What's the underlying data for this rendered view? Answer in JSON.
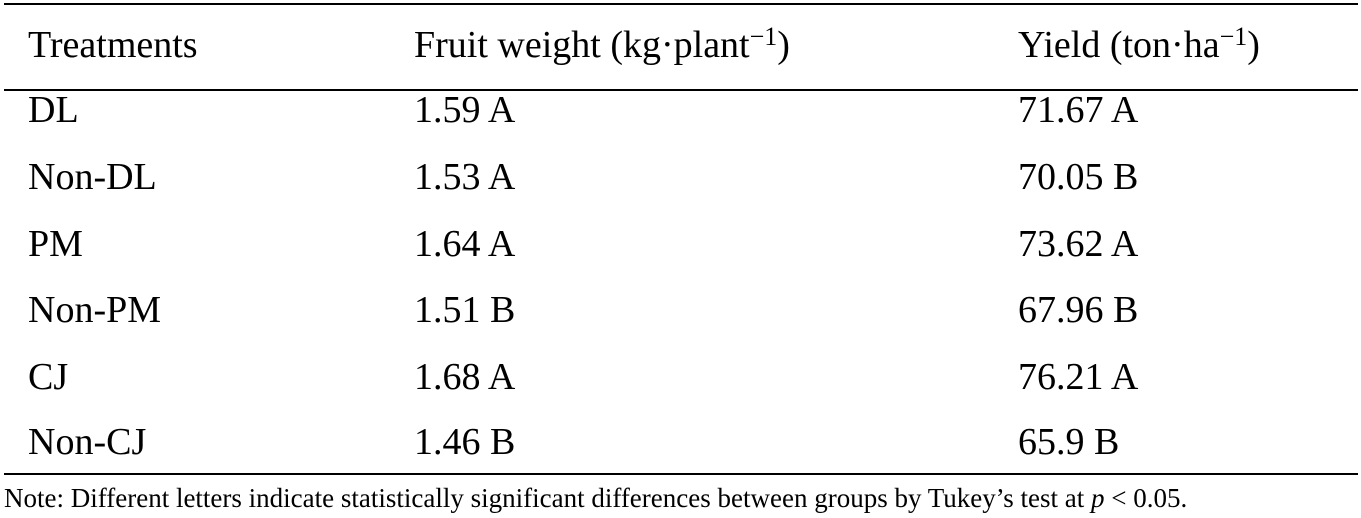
{
  "table": {
    "headers": {
      "treatments": "Treatments",
      "fruit_weight": {
        "prefix": "Fruit weight (kg·plant",
        "exponent": "−1",
        "suffix": ")"
      },
      "yield": {
        "prefix": "Yield (ton·ha",
        "exponent": "−1",
        "suffix": ")"
      }
    },
    "rows": [
      {
        "treatment": "DL",
        "fruit_weight": "1.59 A",
        "yield": "71.67 A"
      },
      {
        "treatment": "Non-DL",
        "fruit_weight": "1.53 A",
        "yield": "70.05 B"
      },
      {
        "treatment": "PM",
        "fruit_weight": "1.64 A",
        "yield": "73.62 A"
      },
      {
        "treatment": "Non-PM",
        "fruit_weight": "1.51 B",
        "yield": "67.96 B"
      },
      {
        "treatment": "CJ",
        "fruit_weight": "1.68 A",
        "yield": "76.21 A"
      },
      {
        "treatment": "Non-CJ",
        "fruit_weight": "1.46 B",
        "yield": "65.9 B"
      }
    ]
  },
  "note": {
    "text": "Note: Different letters indicate statistically significant differences between groups by Tukey’s test at ",
    "p_symbol": "p",
    "threshold": " < 0.05."
  }
}
